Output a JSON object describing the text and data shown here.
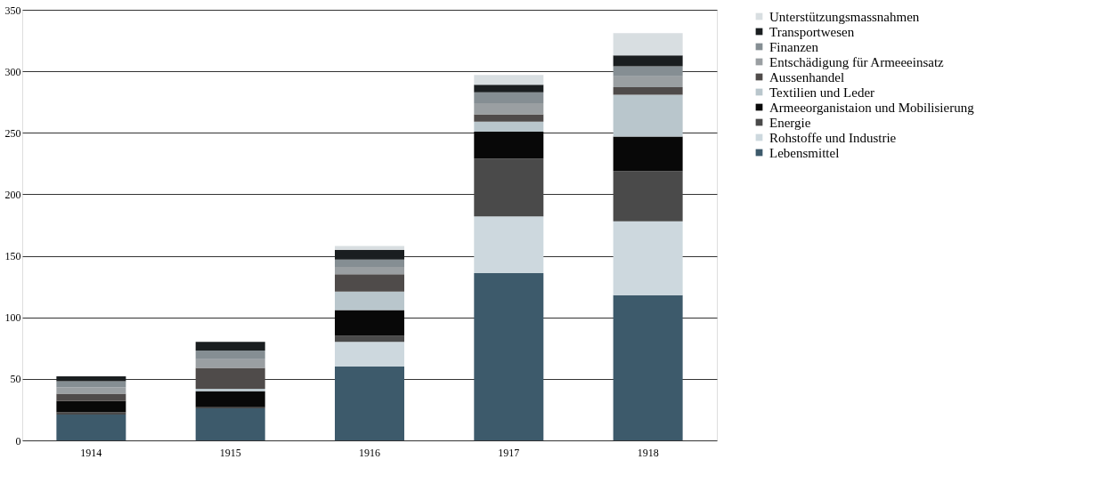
{
  "chart_data": {
    "type": "bar",
    "stacked": true,
    "categories": [
      "1914",
      "1915",
      "1916",
      "1917",
      "1918"
    ],
    "ylim": [
      0,
      350
    ],
    "yticks": [
      0,
      50,
      100,
      150,
      200,
      250,
      300,
      350
    ],
    "grid": "y",
    "legend": "right",
    "series": [
      {
        "name": "Lebensmittel",
        "color": "#3d5a6b",
        "values": [
          21,
          26,
          60,
          136,
          118
        ]
      },
      {
        "name": "Rohstoffe und Industrie",
        "color": "#cdd8de",
        "values": [
          null,
          null,
          20,
          46,
          60
        ]
      },
      {
        "name": "Energie",
        "color": "#4a4a4a",
        "values": [
          2,
          1,
          5,
          47,
          41
        ]
      },
      {
        "name": "Armeeorganistaion und Mobilisierung",
        "color": "#080808",
        "values": [
          9,
          13,
          21,
          22,
          28
        ]
      },
      {
        "name": "Textilien und Leder",
        "color": "#b9c6cc",
        "values": [
          null,
          2,
          15,
          8,
          34
        ]
      },
      {
        "name": "Aussenhandel",
        "color": "#4f4b4a",
        "values": [
          6,
          17,
          14,
          6,
          6
        ]
      },
      {
        "name": "Entschädigung für Armeeeinsatz",
        "color": "#9a9fa2",
        "values": [
          5,
          7,
          6,
          9,
          9
        ]
      },
      {
        "name": "Finanzen",
        "color": "#858e93",
        "values": [
          5,
          7,
          6,
          9,
          8
        ]
      },
      {
        "name": "Transportwesen",
        "color": "#1a1e20",
        "values": [
          4,
          7,
          8,
          6,
          9
        ]
      },
      {
        "name": "Unterstützungsmassnahmen",
        "color": "#d8dee1",
        "values": [
          null,
          null,
          3,
          8,
          18
        ]
      }
    ]
  }
}
